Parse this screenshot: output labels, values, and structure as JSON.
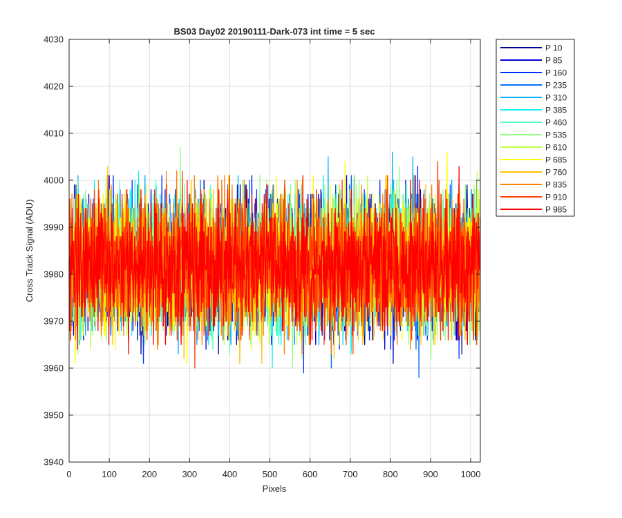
{
  "chart_data": {
    "type": "line",
    "title": "BS03 Day02 20190111-Dark-073 int time = 5 sec",
    "xlabel": "Pixels",
    "ylabel": "Cross Track Signal (ADU)",
    "xlim": [
      0,
      1024
    ],
    "ylim": [
      3940,
      4030
    ],
    "xticks": [
      0,
      100,
      200,
      300,
      400,
      500,
      600,
      700,
      800,
      900,
      1000
    ],
    "yticks": [
      3940,
      3950,
      3960,
      3970,
      3980,
      3990,
      4000,
      4010,
      4020,
      4030
    ],
    "grid": true,
    "legend_position": "outside-top-right",
    "noise": {
      "mean": 3982,
      "sigma": 7,
      "points_per_series": 1024
    },
    "series": [
      {
        "name": "P 10",
        "color": "#00008f"
      },
      {
        "name": "P 85",
        "color": "#0000d6"
      },
      {
        "name": "P 160",
        "color": "#0030ff"
      },
      {
        "name": "P 235",
        "color": "#0070ff"
      },
      {
        "name": "P 310",
        "color": "#00b0ff"
      },
      {
        "name": "P 385",
        "color": "#10f0f0"
      },
      {
        "name": "P 460",
        "color": "#50ffc0"
      },
      {
        "name": "P 535",
        "color": "#8fff80"
      },
      {
        "name": "P 610",
        "color": "#c0ff40"
      },
      {
        "name": "P 685",
        "color": "#ffff00"
      },
      {
        "name": "P 760",
        "color": "#ffc000"
      },
      {
        "name": "P 835",
        "color": "#ff8000"
      },
      {
        "name": "P 910",
        "color": "#ff4000"
      },
      {
        "name": "P 985",
        "color": "#ff0000"
      }
    ]
  }
}
